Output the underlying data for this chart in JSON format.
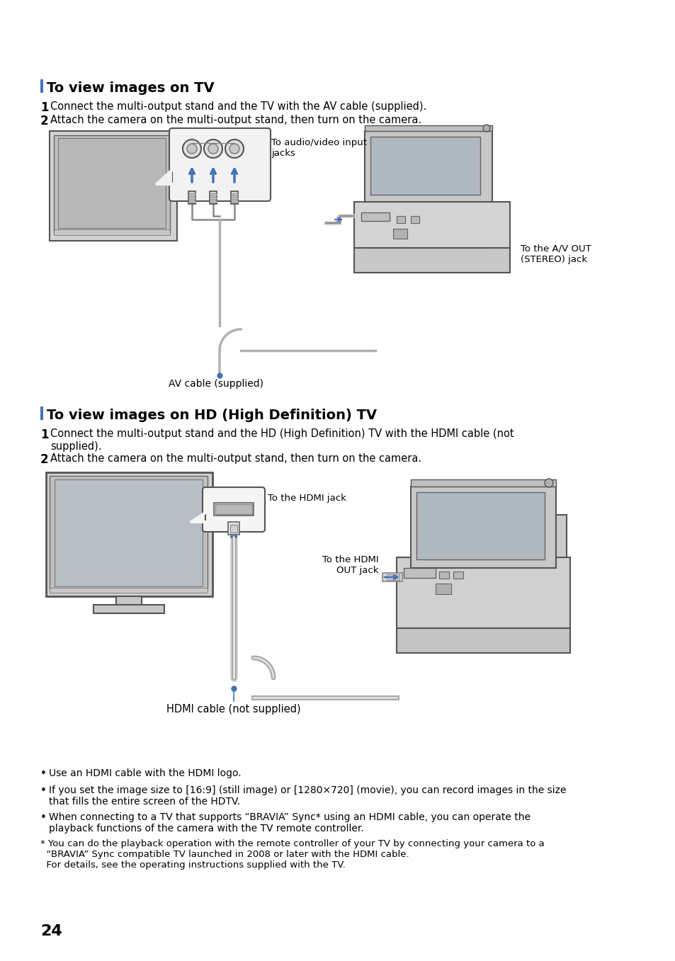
{
  "bg_color": "#ffffff",
  "accent_color": "#4472b8",
  "text_color": "#000000",
  "gray_dark": "#444444",
  "gray_mid": "#888888",
  "gray_light": "#cccccc",
  "gray_lighter": "#e8e8e8",
  "page_number": "24",
  "section1_title": "To view images on TV",
  "section1_step1": "Connect the multi-output stand and the TV with the AV cable (supplied).",
  "section1_step2": "Attach the camera on the multi-output stand, then turn on the camera.",
  "section1_label1": "To audio/video input\njacks",
  "section1_label2": "To the A/V OUT\n(STEREO) jack",
  "section1_label3": "AV cable (supplied)",
  "section2_title": "To view images on HD (High Definition) TV",
  "section2_step1a": "Connect the multi-output stand and the HD (High Definition) TV with the HDMI cable (not",
  "section2_step1b": "supplied).",
  "section2_step2": "Attach the camera on the multi-output stand, then turn on the camera.",
  "section2_label1": "To the HDMI jack",
  "section2_label2": "To the HDMI\nOUT jack",
  "section2_label3": "HDMI cable (not supplied)",
  "bullet1": "Use an HDMI cable with the HDMI logo.",
  "bullet2": "If you set the image size to [16:9] (still image) or [1280×720] (movie), you can record images in the size\nthat fills the entire screen of the HDTV.",
  "bullet3": "When connecting to a TV that supports “BRAVIA” Sync* using an HDMI cable, you can operate the\nplayback functions of the camera with the TV remote controller.",
  "footnote": "* You can do the playback operation with the remote controller of your TV by connecting your camera to a\n  “BRAVIA” Sync compatible TV launched in 2008 or later with the HDMI cable.\n  For details, see the operating instructions supplied with the TV."
}
